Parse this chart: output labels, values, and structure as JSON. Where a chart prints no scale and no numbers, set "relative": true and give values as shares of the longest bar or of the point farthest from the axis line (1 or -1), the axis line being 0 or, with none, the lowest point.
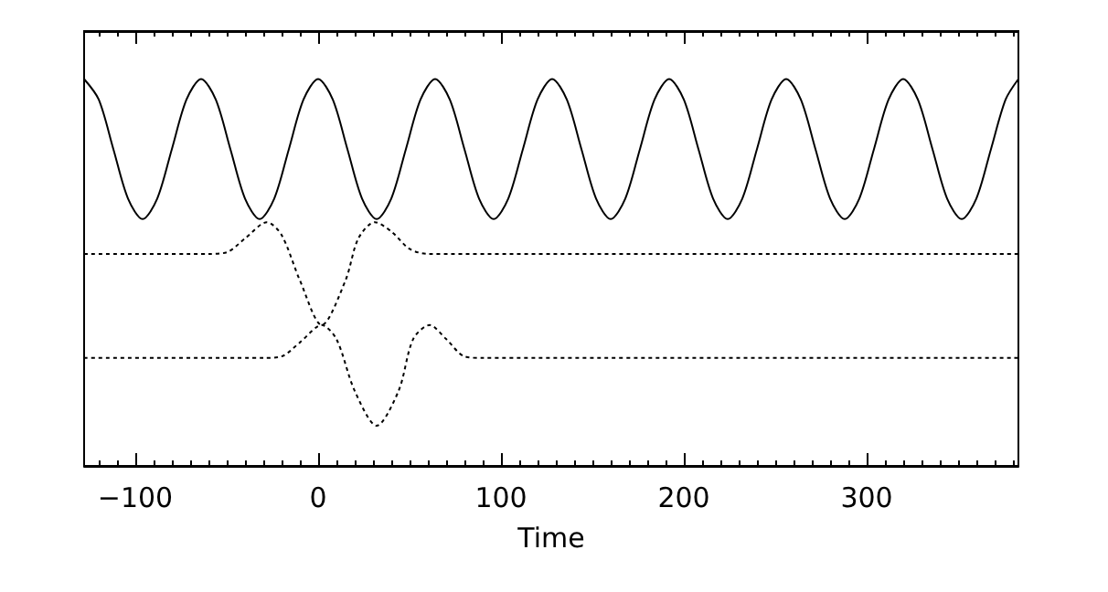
{
  "chart_data": {
    "type": "line",
    "xlabel": "Time",
    "relative": true,
    "xlim": [
      -128,
      383
    ],
    "xticks": [
      -100,
      0,
      100,
      200,
      300
    ],
    "tick_labels": "x",
    "grid": false,
    "marker": "none",
    "series": [
      {
        "color": "#000000",
        "line_style": "solid",
        "x": [
          -128,
          -120,
          -112,
          -104,
          -96,
          -88,
          -80,
          -72,
          -64,
          -56,
          -48,
          -40,
          -32,
          -24,
          -16,
          -8,
          0,
          8,
          16,
          24,
          32,
          40,
          48,
          56,
          64,
          72,
          80,
          88,
          96,
          104,
          112,
          120,
          128,
          136,
          144,
          152,
          160,
          168,
          176,
          184,
          192,
          200,
          208,
          216,
          224,
          232,
          240,
          248,
          256,
          264,
          272,
          280,
          288,
          296,
          304,
          312,
          320,
          328,
          336,
          344,
          352,
          360,
          368,
          376,
          383
        ],
        "values": [
          1.0,
          0.947,
          0.819,
          0.691,
          0.638,
          0.691,
          0.819,
          0.947,
          1.0,
          0.947,
          0.819,
          0.691,
          0.638,
          0.691,
          0.819,
          0.947,
          1.0,
          0.947,
          0.819,
          0.691,
          0.638,
          0.691,
          0.819,
          0.947,
          1.0,
          0.947,
          0.819,
          0.691,
          0.638,
          0.691,
          0.819,
          0.947,
          1.0,
          0.947,
          0.819,
          0.691,
          0.638,
          0.691,
          0.819,
          0.947,
          1.0,
          0.947,
          0.819,
          0.691,
          0.638,
          0.691,
          0.819,
          0.947,
          1.0,
          0.947,
          0.819,
          0.691,
          0.638,
          0.691,
          0.819,
          0.947,
          1.0,
          0.947,
          0.819,
          0.691,
          0.638,
          0.691,
          0.819,
          0.947,
          1.0
        ]
      },
      {
        "color": "#000000",
        "line_style": "dotted",
        "x": [
          -128,
          -60,
          -50,
          -40,
          -28,
          -20,
          -10,
          2,
          15,
          22,
          31,
          40,
          50,
          60,
          383
        ],
        "values": [
          0.548,
          0.548,
          0.552,
          0.588,
          0.63,
          0.597,
          0.48,
          0.364,
          0.48,
          0.588,
          0.63,
          0.606,
          0.561,
          0.548,
          0.548
        ]
      },
      {
        "color": "#000000",
        "line_style": "dotted",
        "x": [
          -128,
          -30,
          -20,
          -10,
          2,
          10,
          20,
          32,
          44,
          52,
          61,
          70,
          80,
          90,
          383
        ],
        "values": [
          0.279,
          0.279,
          0.283,
          0.319,
          0.364,
          0.328,
          0.194,
          0.104,
          0.194,
          0.328,
          0.364,
          0.328,
          0.283,
          0.279,
          0.279
        ]
      }
    ]
  }
}
